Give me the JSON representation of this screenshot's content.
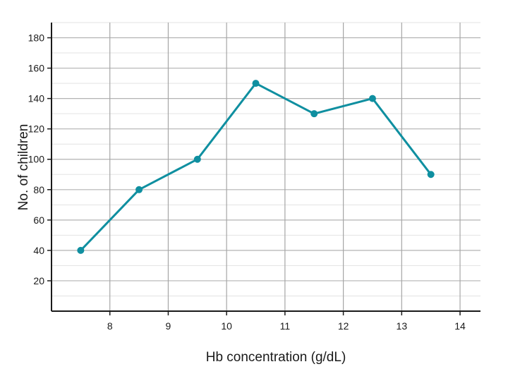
{
  "chart_data": {
    "type": "line",
    "title": "",
    "xlabel": "Hb concentration (g/dL)",
    "ylabel": "No. of children",
    "xlim": [
      7,
      14.35
    ],
    "ylim": [
      0,
      190
    ],
    "x_ticks": [
      8,
      9,
      10,
      11,
      12,
      13,
      14
    ],
    "y_ticks": [
      20,
      40,
      60,
      80,
      100,
      120,
      140,
      160,
      180
    ],
    "grid": true,
    "legend": "none",
    "series": [
      {
        "color": "#0f8fa0",
        "points": [
          {
            "x": 7.5,
            "y": 40
          },
          {
            "x": 8.5,
            "y": 80
          },
          {
            "x": 9.5,
            "y": 100
          },
          {
            "x": 10.5,
            "y": 150
          },
          {
            "x": 11.5,
            "y": 130
          },
          {
            "x": 12.5,
            "y": 140
          },
          {
            "x": 13.5,
            "y": 90
          }
        ]
      }
    ]
  }
}
